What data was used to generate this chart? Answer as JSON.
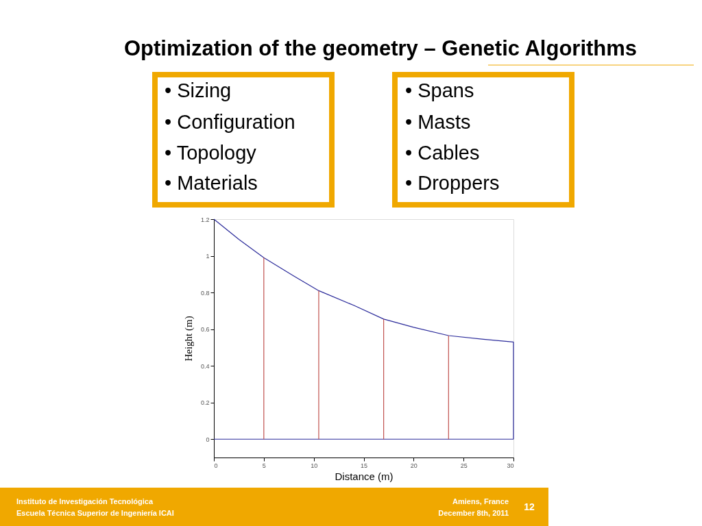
{
  "chart_data": {
    "type": "line",
    "title": "Optimization of the geometry – Genetic Algorithms",
    "xlabel": "Distance (m)",
    "ylabel": "Height  (m)",
    "xlim": [
      0,
      30
    ],
    "xticks": [
      0,
      5,
      10,
      15,
      20,
      25,
      30
    ],
    "ylim": [
      -0.1,
      1.2
    ],
    "yticks": [
      {
        "value": 0,
        "label": "0"
      },
      0.2,
      0.4,
      0.6,
      0.8,
      {
        "value": 1,
        "label": "1"
      },
      1.2
    ],
    "grid": false,
    "marker": "none",
    "line_style": "solid",
    "series": [
      {
        "color": "#2a2a9a",
        "x": [
          0,
          2.5,
          5,
          8,
          10.5,
          14,
          17,
          20,
          23.5,
          27,
          30
        ],
        "values": [
          1.2,
          1.09,
          0.99,
          0.89,
          0.81,
          0.73,
          0.655,
          0.61,
          0.565,
          0.545,
          0.53
        ]
      },
      {
        "color": "#2a2a9a",
        "x": [
          0,
          5,
          10.5,
          14,
          17,
          23.5,
          30
        ],
        "values": [
          0,
          0,
          0,
          0,
          0,
          0,
          0
        ]
      },
      {
        "color": "#2a2a9a",
        "x": [
          30,
          30
        ],
        "values": [
          0,
          0.53
        ]
      },
      {
        "color": "#c0504d",
        "x": [
          5,
          5
        ],
        "values": [
          0,
          0.99
        ]
      },
      {
        "color": "#c0504d",
        "x": [
          10.5,
          10.5
        ],
        "values": [
          0,
          0.81
        ]
      },
      {
        "color": "#c0504d",
        "x": [
          17,
          17
        ],
        "values": [
          0,
          0.655
        ]
      },
      {
        "color": "#c0504d",
        "x": [
          23.5,
          23.5
        ],
        "values": [
          0,
          0.565
        ]
      }
    ],
    "annotations": [
      "• Sizing",
      "• Configuration",
      "• Topology",
      "• Materials",
      "• Spans",
      "• Masts",
      "• Cables",
      "• Droppers",
      "Instituto de Investigación Tecnológica",
      "Escuela Técnica Superior de Ingeniería ICAI",
      "Amiens, France",
      "December 8th, 2011",
      "12"
    ]
  }
}
